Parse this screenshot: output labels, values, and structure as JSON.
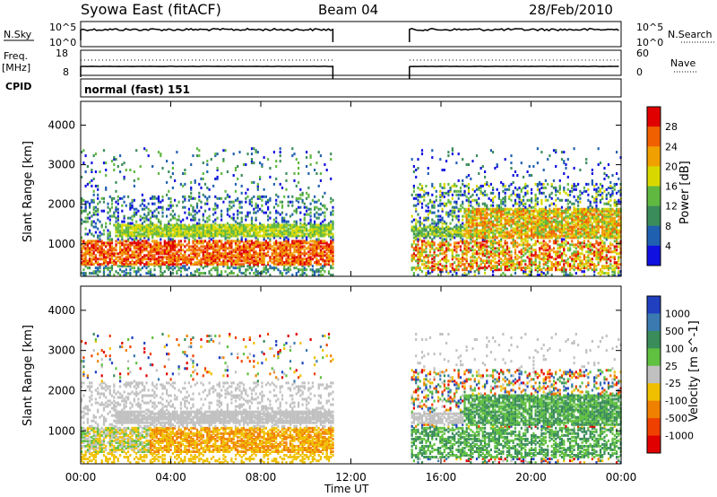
{
  "header": {
    "station": "Syowa East (fitACF)",
    "beam": "Beam 04",
    "date": "28/Feb/2010"
  },
  "nsky_panel": {
    "left_label": "N.Sky",
    "right_label": "N.Search",
    "ticks_left": [
      "10^5",
      "10^0"
    ],
    "ticks_right": [
      "10^5",
      "10^0"
    ]
  },
  "freq_panel": {
    "left_label_line1": "Freq.",
    "left_label_line2": "[MHz]",
    "ticks_left": [
      "18",
      "8"
    ],
    "ticks_right": [
      "60",
      "0"
    ],
    "right_label": "Nave"
  },
  "cpid_panel": {
    "label": "CPID",
    "mode": "normal (fast) 151"
  },
  "chart_data": [
    {
      "type": "heatmap",
      "name": "power",
      "ylabel": "Slant Range [km]",
      "y_ticks": [
        1000,
        2000,
        3000,
        4000
      ],
      "ylim": [
        180,
        4600
      ],
      "x_ticks": [
        "00:00",
        "04:00",
        "08:00",
        "12:00",
        "16:00",
        "20:00",
        "00:00"
      ],
      "xlim_hours": [
        0,
        24
      ],
      "colorbar_label": "Power [dB]",
      "colorbar_ticks": [
        "4",
        "8",
        "12",
        "16",
        "20",
        "24",
        "28"
      ],
      "colorbar_colors": [
        "#1010e0",
        "#2060b0",
        "#3a8c5a",
        "#60b840",
        "#d8d800",
        "#f0a000",
        "#f06000",
        "#e00000"
      ],
      "data_gap_hours": [
        11.2,
        14.6
      ]
    },
    {
      "type": "heatmap",
      "name": "velocity",
      "ylabel": "Slant Range [km]",
      "y_ticks": [
        1000,
        2000,
        3000,
        4000
      ],
      "ylim": [
        180,
        4600
      ],
      "x_ticks": [
        "00:00",
        "04:00",
        "08:00",
        "12:00",
        "16:00",
        "20:00",
        "00:00"
      ],
      "xlim_hours": [
        0,
        24
      ],
      "xlabel": "Time UT",
      "colorbar_label": "Velocity [m s^-1]",
      "colorbar_ticks": [
        "1000",
        "500",
        "100",
        "25",
        "-25",
        "-100",
        "-500",
        "-1000"
      ],
      "colorbar_colors": [
        "#2040c0",
        "#3a7ab0",
        "#3a8c5a",
        "#60c040",
        "#c0c0c0",
        "#f0c000",
        "#f08000",
        "#f04000",
        "#e00000"
      ],
      "data_gap_hours": [
        11.2,
        14.6
      ]
    }
  ]
}
